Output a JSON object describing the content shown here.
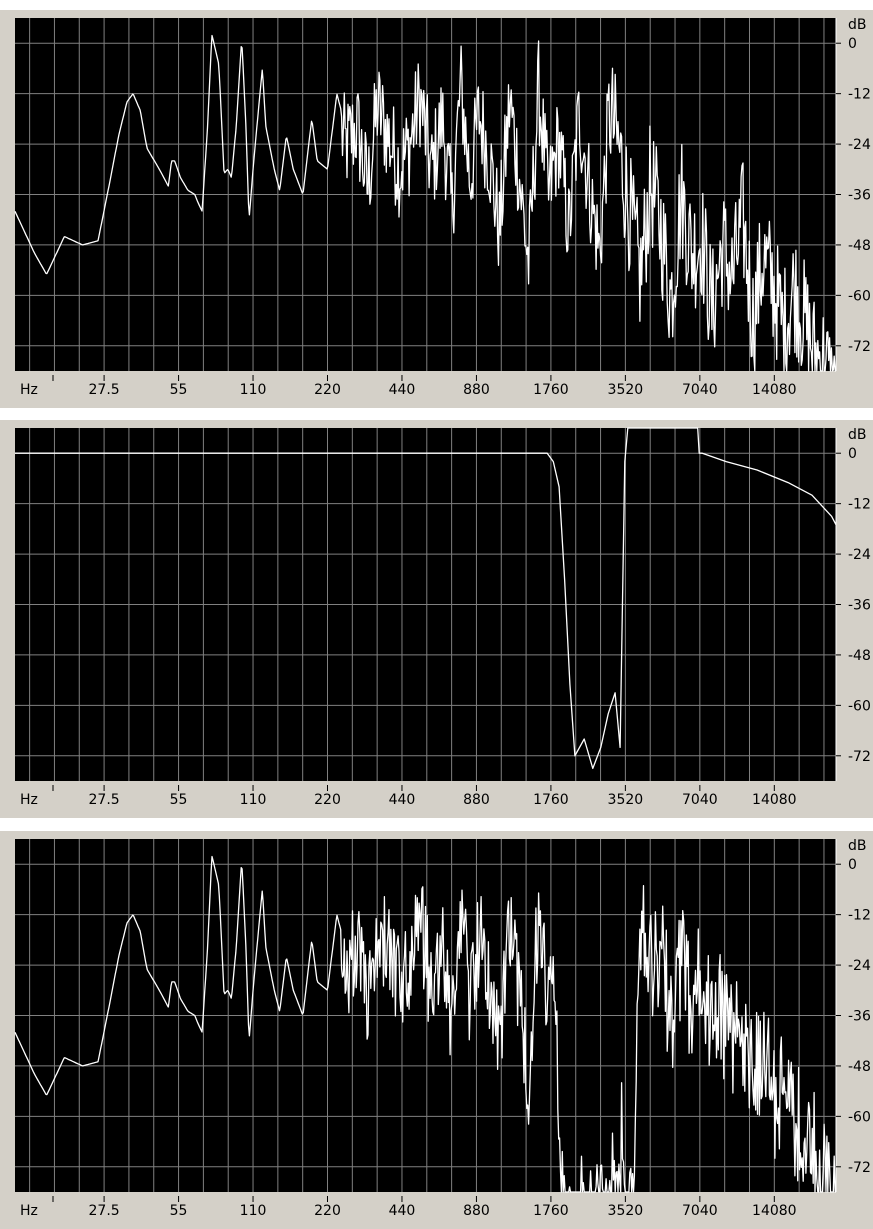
{
  "colors": {
    "plot_background": "#000000",
    "grid": "#808080",
    "trace": "#ffffff",
    "frame": "#d4d0c8",
    "label_text": "#000000"
  },
  "chart_data": [
    {
      "type": "line",
      "xscale": "log",
      "xlabel": "Hz",
      "ylabel": "dB",
      "xlim": [
        12,
        25000
      ],
      "ylim": [
        -78,
        6
      ],
      "xticks": [
        "27.5",
        "55",
        "110",
        "220",
        "440",
        "880",
        "1760",
        "3520",
        "7040",
        "14080"
      ],
      "yticks": [
        "0",
        "-12",
        "-24",
        "-36",
        "-48",
        "-60",
        "-72"
      ],
      "grid": true,
      "series": [
        {
          "dense": true,
          "x": [
            12,
            14.4,
            16.1,
            19,
            22.5,
            26,
            29,
            31.5,
            34,
            36,
            38.5,
            41,
            46,
            50,
            51.5,
            53,
            56,
            60,
            64,
            66,
            68.5,
            72,
            75,
            80,
            84,
            87,
            90,
            94,
            99,
            103,
            106,
            110,
            116,
            120,
            124,
            128,
            134,
            141,
            150,
            160,
            175,
            190,
            200,
            220,
            240,
            260,
            290,
            320,
            350,
            390,
            430,
            470,
            520,
            580,
            640,
            700,
            760,
            830,
            900,
            990,
            1090,
            1200,
            1300,
            1430,
            1570,
            1720,
            1890,
            2080,
            2290,
            2520,
            2770,
            3040,
            3340,
            3680,
            4050,
            4450,
            4900,
            5390,
            5930,
            6520,
            7170,
            7890,
            8680,
            9550,
            10500,
            11550,
            12700,
            13970,
            15360,
            16900,
            18600,
            20400,
            22500,
            24000,
            25000
          ],
          "y": [
            -40,
            -50,
            -55,
            -46,
            -48,
            -47,
            -33,
            -22,
            -14,
            -12,
            -16,
            -25,
            -30,
            -34,
            -28,
            -28,
            -32,
            -35,
            -36,
            -38,
            -40,
            -20,
            2,
            -5,
            -31,
            -30,
            -32,
            -20,
            1,
            -20,
            -42,
            -30,
            -15,
            -6,
            -20,
            -24,
            -30,
            -35,
            -22,
            -30,
            -36,
            -18,
            -28,
            -30,
            -12,
            -20,
            -15,
            -30,
            -10,
            -18,
            -25,
            -20,
            -8,
            -26,
            -13,
            -35,
            -5,
            -28,
            -12,
            -22,
            -40,
            -9,
            -25,
            -48,
            -6,
            -32,
            -18,
            -40,
            -12,
            -30,
            -45,
            -10,
            -20,
            -35,
            -50,
            -27,
            -38,
            -55,
            -30,
            -44,
            -40,
            -58,
            -42,
            -50,
            -36,
            -60,
            -45,
            -52,
            -62,
            -52,
            -60,
            -68,
            -70,
            -76,
            -78
          ]
        }
      ]
    },
    {
      "type": "line",
      "xscale": "log",
      "xlabel": "Hz",
      "ylabel": "dB",
      "xlim": [
        12,
        25000
      ],
      "ylim": [
        -78,
        6
      ],
      "xticks": [
        "27.5",
        "55",
        "110",
        "220",
        "440",
        "880",
        "1760",
        "3520",
        "7040",
        "14080"
      ],
      "yticks": [
        "0",
        "-12",
        "-24",
        "-36",
        "-48",
        "-60",
        "-72"
      ],
      "grid": true,
      "series": [
        {
          "dense": false,
          "x": [
            12,
            1700,
            1800,
            1900,
            2000,
            2100,
            2200,
            2400,
            2600,
            2800,
            3000,
            3200,
            3350,
            3500,
            3600,
            4000,
            5000,
            6000,
            6900,
            7000,
            7200,
            9000,
            12000,
            16000,
            20000,
            24000,
            25000
          ],
          "y": [
            0,
            0,
            -2,
            -8,
            -30,
            -55,
            -72,
            -68,
            -75,
            -70,
            -62,
            -57,
            -70,
            -2,
            6,
            6,
            6,
            6,
            6,
            0,
            0,
            -2,
            -4,
            -7,
            -10,
            -15,
            -17
          ]
        }
      ]
    },
    {
      "type": "line",
      "xscale": "log",
      "xlabel": "Hz",
      "ylabel": "dB",
      "xlim": [
        12,
        25000
      ],
      "ylim": [
        -78,
        6
      ],
      "xticks": [
        "27.5",
        "55",
        "110",
        "220",
        "440",
        "880",
        "1760",
        "3520",
        "7040",
        "14080"
      ],
      "yticks": [
        "0",
        "-12",
        "-24",
        "-36",
        "-48",
        "-60",
        "-72"
      ],
      "grid": true,
      "series": [
        {
          "dense": true,
          "x": [
            12,
            14.4,
            16.1,
            19,
            22.5,
            26,
            29,
            31.5,
            34,
            36,
            38.5,
            41,
            46,
            50,
            51.5,
            53,
            56,
            60,
            64,
            66,
            68.5,
            72,
            75,
            80,
            84,
            87,
            90,
            94,
            99,
            103,
            106,
            110,
            116,
            120,
            124,
            128,
            134,
            141,
            150,
            160,
            175,
            190,
            200,
            220,
            240,
            260,
            290,
            320,
            350,
            390,
            430,
            470,
            520,
            580,
            640,
            700,
            760,
            830,
            900,
            990,
            1090,
            1200,
            1300,
            1430,
            1570,
            1720,
            1800,
            1900,
            2000,
            2200,
            2500,
            2800,
            3000,
            3200,
            3400,
            3600,
            3800,
            4050,
            4450,
            4900,
            5390,
            5930,
            6520,
            7170,
            7890,
            8680,
            9550,
            10500,
            11550,
            12700,
            13970,
            15360,
            16900,
            18600,
            20400,
            22500,
            24000,
            25000
          ],
          "y": [
            -40,
            -50,
            -55,
            -46,
            -48,
            -47,
            -33,
            -22,
            -14,
            -12,
            -16,
            -25,
            -30,
            -34,
            -28,
            -28,
            -32,
            -35,
            -36,
            -38,
            -40,
            -20,
            2,
            -5,
            -31,
            -30,
            -32,
            -20,
            1,
            -20,
            -42,
            -30,
            -15,
            -6,
            -20,
            -24,
            -30,
            -35,
            -22,
            -30,
            -36,
            -18,
            -28,
            -30,
            -12,
            -20,
            -15,
            -30,
            -10,
            -18,
            -25,
            -20,
            -8,
            -26,
            -13,
            -35,
            -5,
            -28,
            -12,
            -22,
            -40,
            -9,
            -25,
            -48,
            -6,
            -32,
            -20,
            -55,
            -78,
            -75,
            -78,
            -78,
            -77,
            -70,
            -60,
            -78,
            -72,
            -5,
            -20,
            -15,
            -30,
            -18,
            -28,
            -22,
            -32,
            -30,
            -38,
            -35,
            -45,
            -40,
            -50,
            -48,
            -55,
            -60,
            -62,
            -70,
            -75,
            -78
          ]
        }
      ]
    }
  ]
}
